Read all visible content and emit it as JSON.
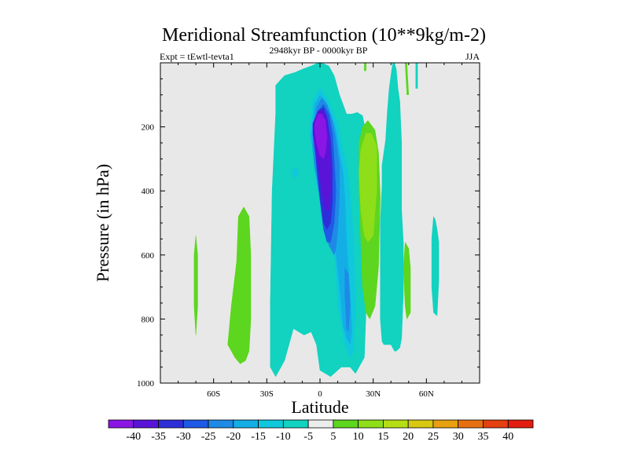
{
  "chart_data": {
    "type": "heatmap",
    "title": "Meridional Streamfunction (10**9kg/m-2)",
    "left_label": "Expt = tEwtl-tevta1",
    "center_label": "2948kyr BP - 0000kyr BP",
    "right_label": "JJA",
    "xlabel": "Latitude",
    "ylabel": "Pressure (in hPa)",
    "xlim": [
      -90,
      90
    ],
    "ylim": [
      1000,
      0
    ],
    "x_ticks": [
      {
        "value": -60,
        "label": "60S"
      },
      {
        "value": -30,
        "label": "30S"
      },
      {
        "value": 0,
        "label": "0"
      },
      {
        "value": 30,
        "label": "30N"
      },
      {
        "value": 60,
        "label": "60N"
      }
    ],
    "y_ticks": [
      {
        "value": 200,
        "label": "200"
      },
      {
        "value": 400,
        "label": "400"
      },
      {
        "value": 600,
        "label": "600"
      },
      {
        "value": 800,
        "label": "800"
      },
      {
        "value": 1000,
        "label": "1000"
      }
    ],
    "colorbar": {
      "labels": [
        "-40",
        "-35",
        "-30",
        "-25",
        "-20",
        "-15",
        "-10",
        "-5",
        "5",
        "10",
        "15",
        "20",
        "25",
        "30",
        "35",
        "40"
      ],
      "colors": [
        "#8a16e6",
        "#5a14d8",
        "#2e2ed8",
        "#1e5ae6",
        "#1e8ae6",
        "#14aee6",
        "#10c8dc",
        "#12d2c0",
        "#ececec",
        "#5cd61e",
        "#8ede1a",
        "#b6de16",
        "#d8c812",
        "#e6a010",
        "#e67010",
        "#e44010",
        "#e21c10"
      ]
    },
    "background_color": "#e8e8e8",
    "contours": [
      {
        "level": "-5",
        "color": "#12d2c0",
        "lat": [
          -25,
          -20,
          -14,
          -10,
          -5,
          -1,
          1,
          5,
          8,
          11,
          15,
          18,
          21,
          24,
          26,
          28,
          27,
          25,
          20,
          17,
          12,
          6,
          0,
          -2,
          -5,
          -9,
          -15,
          -20,
          -25,
          -28,
          -28,
          -27,
          -25
        ],
        "p": [
          70,
          40,
          30,
          20,
          10,
          0,
          0,
          10,
          40,
          100,
          160,
          160,
          155,
          165,
          220,
          350,
          620,
          920,
          970,
          950,
          950,
          980,
          960,
          880,
          840,
          850,
          830,
          930,
          980,
          950,
          750,
          400,
          160
        ]
      },
      {
        "level": "-5",
        "color": "#12d2c0",
        "lat": [
          35,
          37,
          38,
          39,
          40,
          41,
          42,
          43,
          44,
          45,
          46,
          46,
          46,
          47,
          47,
          46,
          45,
          43,
          42,
          40,
          38,
          36,
          35,
          34,
          34,
          35
        ],
        "p": [
          320,
          240,
          150,
          80,
          40,
          0,
          0,
          20,
          80,
          120,
          250,
          350,
          460,
          560,
          720,
          860,
          890,
          900,
          900,
          880,
          880,
          880,
          870,
          800,
          500,
          380
        ]
      },
      {
        "level": "-5",
        "color": "#12d2c0",
        "lat": [
          64,
          65,
          66,
          67,
          67,
          66,
          64,
          63,
          63
        ],
        "p": [
          480,
          490,
          520,
          560,
          680,
          790,
          780,
          700,
          550
        ]
      },
      {
        "level": "-5",
        "color": "#12d2c0",
        "lat": [
          54,
          55,
          55,
          54
        ],
        "p": [
          0,
          0,
          80,
          80
        ]
      },
      {
        "level": "-10",
        "color": "#10c8dc",
        "lat": [
          -6,
          -4,
          0,
          4,
          7,
          10,
          12,
          15,
          17,
          19,
          20,
          19,
          17,
          14,
          13,
          10,
          9,
          7,
          5,
          3,
          1,
          -1,
          -2,
          -3,
          -4
        ],
        "p": [
          230,
          120,
          80,
          110,
          150,
          190,
          250,
          320,
          400,
          560,
          760,
          900,
          920,
          880,
          840,
          760,
          640,
          560,
          560,
          540,
          420,
          400,
          380,
          300,
          260
        ]
      },
      {
        "level": "-10",
        "color": "#10c8dc",
        "lat": [
          -15,
          -13,
          -12,
          -14,
          -16
        ],
        "p": [
          330,
          330,
          350,
          360,
          345
        ]
      },
      {
        "level": "-15",
        "color": "#14aee6",
        "lat": [
          -5,
          -3,
          0,
          3,
          6,
          9,
          11,
          13,
          14,
          15,
          17,
          18,
          17,
          15,
          13,
          11,
          9,
          7,
          5,
          3,
          1,
          -1,
          -3,
          -4
        ],
        "p": [
          230,
          130,
          100,
          120,
          160,
          210,
          280,
          340,
          420,
          560,
          720,
          840,
          880,
          860,
          820,
          700,
          600,
          560,
          550,
          500,
          420,
          380,
          330,
          280
        ]
      },
      {
        "level": "-20",
        "color": "#1e8ae6",
        "lat": [
          -4,
          -2,
          1,
          4,
          7,
          9,
          11,
          11,
          10,
          9,
          8,
          5,
          3,
          1,
          -1,
          -3,
          -4
        ],
        "p": [
          220,
          140,
          110,
          130,
          180,
          240,
          320,
          420,
          520,
          580,
          600,
          570,
          520,
          460,
          390,
          320,
          260
        ]
      },
      {
        "level": "-20",
        "color": "#1e8ae6",
        "lat": [
          14,
          16,
          17,
          16,
          15,
          14
        ],
        "p": [
          640,
          660,
          760,
          840,
          830,
          720
        ]
      },
      {
        "level": "-25",
        "color": "#1e5ae6",
        "lat": [
          -4,
          -1,
          2,
          5,
          7,
          8,
          9,
          8,
          6,
          4,
          2,
          0,
          -2,
          -3
        ],
        "p": [
          200,
          150,
          130,
          160,
          220,
          300,
          400,
          500,
          560,
          560,
          520,
          430,
          320,
          260
        ]
      },
      {
        "level": "-30",
        "color": "#2e2ed8",
        "lat": [
          -4,
          -1,
          2,
          4,
          6,
          7,
          7,
          6,
          4,
          2,
          0,
          -2,
          -3
        ],
        "p": [
          190,
          150,
          140,
          170,
          240,
          330,
          430,
          500,
          520,
          500,
          420,
          310,
          240
        ]
      },
      {
        "level": "-35",
        "color": "#5a14d8",
        "lat": [
          -4,
          -1,
          2,
          4,
          5,
          6,
          6,
          5,
          3,
          1,
          -1,
          -3,
          -4
        ],
        "p": [
          190,
          150,
          150,
          180,
          240,
          300,
          400,
          460,
          460,
          400,
          320,
          260,
          220
        ]
      },
      {
        "level": "-40",
        "color": "#8a16e6",
        "lat": [
          -3,
          -1,
          1,
          3,
          4,
          3,
          2,
          0,
          -2,
          -3
        ],
        "p": [
          190,
          160,
          160,
          180,
          230,
          280,
          300,
          290,
          250,
          210
        ]
      },
      {
        "level": "5",
        "color": "#5cd61e",
        "lat": [
          -70,
          -69,
          -69,
          -70,
          -71,
          -71
        ],
        "p": [
          540,
          600,
          760,
          850,
          760,
          600
        ]
      },
      {
        "level": "5",
        "color": "#5cd61e",
        "lat": [
          -46,
          -43,
          -40,
          -39,
          -39,
          -40,
          -42,
          -45,
          -48,
          -52,
          -50,
          -47
        ],
        "p": [
          480,
          450,
          480,
          600,
          800,
          900,
          930,
          940,
          920,
          880,
          760,
          620
        ]
      },
      {
        "level": "5",
        "color": "#5cd61e",
        "lat": [
          22,
          24,
          27,
          31,
          33,
          34,
          33,
          31,
          28,
          26,
          24,
          23,
          22
        ],
        "p": [
          250,
          200,
          180,
          210,
          280,
          420,
          640,
          760,
          800,
          780,
          700,
          560,
          400
        ]
      },
      {
        "level": "5",
        "color": "#5cd61e",
        "lat": [
          25,
          26,
          26,
          25
        ],
        "p": [
          0,
          0,
          25,
          25
        ]
      },
      {
        "level": "5",
        "color": "#5cd61e",
        "lat": [
          48,
          50,
          51,
          51,
          49,
          48,
          47
        ],
        "p": [
          560,
          580,
          640,
          780,
          800,
          760,
          640
        ]
      },
      {
        "level": "5",
        "color": "#5cd61e",
        "lat": [
          48,
          49,
          50,
          49
        ],
        "p": [
          0,
          0,
          100,
          100
        ]
      },
      {
        "level": "10",
        "color": "#8ede1a",
        "lat": [
          23,
          26,
          29,
          32,
          32,
          30,
          27,
          25,
          23,
          22
        ],
        "p": [
          270,
          220,
          220,
          260,
          400,
          540,
          560,
          540,
          460,
          340
        ]
      }
    ]
  }
}
